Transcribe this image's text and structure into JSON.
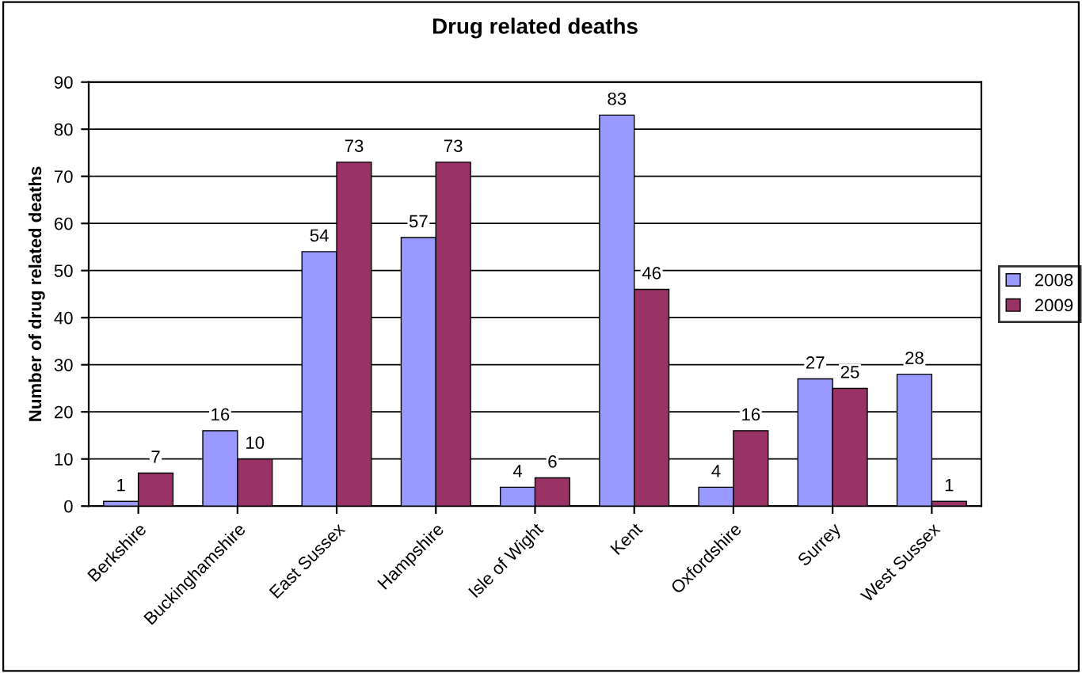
{
  "chart_data": {
    "type": "bar",
    "title": "Drug related deaths",
    "ylabel": "Number of drug related deaths",
    "categories": [
      "Berkshire",
      "Buckinghamshire",
      "East Sussex",
      "Hampshire",
      "Isle of Wight",
      "Kent",
      "Oxfordshire",
      "Surrey",
      "West Sussex"
    ],
    "series": [
      {
        "name": "2008",
        "color": "#9999ff",
        "values": [
          1,
          16,
          54,
          57,
          4,
          83,
          4,
          27,
          28
        ]
      },
      {
        "name": "2009",
        "color": "#993366",
        "values": [
          7,
          10,
          73,
          73,
          6,
          46,
          16,
          25,
          1
        ]
      }
    ],
    "ylim": [
      0,
      90
    ],
    "yticks": [
      0,
      10,
      20,
      30,
      40,
      50,
      60,
      70,
      80,
      90
    ],
    "grid": "y",
    "legend": "right",
    "data_labels": true
  }
}
